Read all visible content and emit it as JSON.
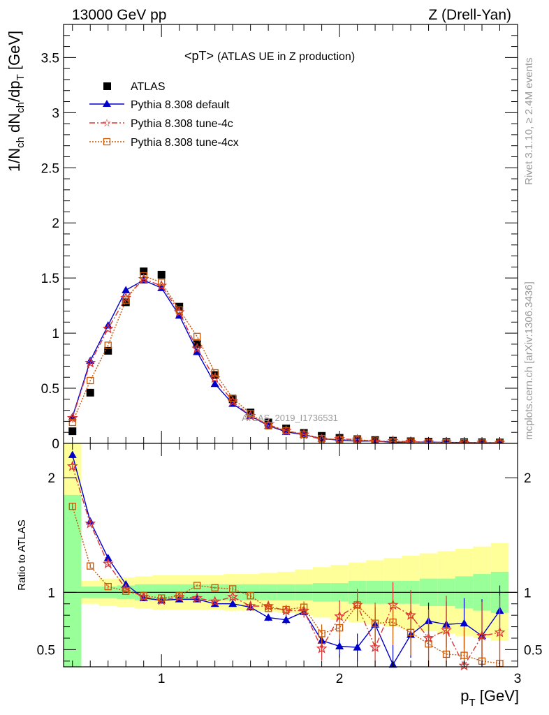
{
  "header": {
    "left": "13000 GeV pp",
    "right": "Z (Drell-Yan)"
  },
  "side": {
    "rivet": "Rivet 3.1.10, ≥ 2.4M events",
    "mcplots": "mcplots.cern.ch [arXiv:1306.3436]"
  },
  "colors": {
    "atlas": "#000000",
    "default": "#0000cc",
    "tune4c": "#dd3333",
    "tune4cx": "#cc5500",
    "band_inner": "#99ff99",
    "band_outer": "#ffff99"
  },
  "chart_data": [
    {
      "type": "scatter",
      "panel": "main",
      "title": "<pT>",
      "subtitle": "(ATLAS UE in Z production)",
      "watermark": "ATLAS_2019_I1736531",
      "ylabel": "1/N_ch dN_ch/dp_T [GeV]",
      "ylabel_parts": {
        "a": "1/N",
        "b": "ch",
        "c": " dN",
        "d": "ch",
        "e": "/dp",
        "f": "T",
        "g": " [GeV]"
      },
      "xlabel": "p_T [GeV]",
      "xlabel_parts": {
        "a": "p",
        "b": "T",
        "c": " [GeV]"
      },
      "xlim": [
        0.45,
        3.0
      ],
      "ylim": [
        0,
        3.8
      ],
      "yticks": [
        "0",
        "0.5",
        "1",
        "1.5",
        "2",
        "2.5",
        "3",
        "3.5"
      ],
      "ytick_values": [
        0,
        0.5,
        1,
        1.5,
        2,
        2.5,
        3,
        3.5
      ],
      "legend_position": "top-left",
      "x": [
        0.5,
        0.6,
        0.7,
        0.8,
        0.9,
        1.0,
        1.1,
        1.2,
        1.3,
        1.4,
        1.5,
        1.6,
        1.7,
        1.8,
        1.9,
        2.0,
        2.1,
        2.2,
        2.3,
        2.4,
        2.5,
        2.6,
        2.7,
        2.8,
        2.9
      ],
      "series": [
        {
          "name": "ATLAS",
          "marker": "square",
          "values": [
            0.11,
            0.46,
            0.84,
            1.28,
            1.56,
            1.53,
            1.24,
            0.9,
            0.62,
            0.4,
            0.28,
            0.19,
            0.135,
            0.095,
            0.068,
            0.05,
            0.038,
            0.03,
            0.024,
            0.019,
            0.016,
            0.013,
            0.011,
            0.01,
            0.008
          ]
        },
        {
          "name": "Pythia 8.308 default",
          "marker": "triangle",
          "line": "solid",
          "values": [
            0.24,
            0.75,
            1.07,
            1.39,
            1.48,
            1.41,
            1.16,
            0.83,
            0.54,
            0.36,
            0.25,
            0.16,
            0.105,
            0.078,
            0.045,
            0.028,
            0.02,
            0.022,
            0.009,
            0.012,
            0.012,
            0.009,
            0.008,
            0.006,
            0.007
          ]
        },
        {
          "name": "Pythia 8.308 tune-4c",
          "marker": "star",
          "line": "dashdot",
          "values": [
            0.23,
            0.73,
            1.04,
            1.32,
            1.49,
            1.43,
            1.19,
            0.86,
            0.59,
            0.38,
            0.25,
            0.17,
            0.115,
            0.08,
            0.035,
            0.04,
            0.035,
            0.016,
            0.022,
            0.015,
            0.01,
            0.009,
            0.004,
            0.006,
            0.005
          ]
        },
        {
          "name": "Pythia 8.308 tune-4cx",
          "marker": "open-square",
          "line": "dotted",
          "values": [
            0.19,
            0.57,
            0.89,
            1.3,
            1.52,
            1.46,
            1.21,
            0.97,
            0.64,
            0.41,
            0.27,
            0.16,
            0.115,
            0.083,
            0.044,
            0.035,
            0.034,
            0.022,
            0.018,
            0.012,
            0.009,
            0.006,
            0.005,
            0.004,
            0.003
          ]
        }
      ]
    },
    {
      "type": "scatter",
      "panel": "ratio",
      "ylabel": "Ratio to ATLAS",
      "xlim": [
        0.45,
        3.0
      ],
      "ylim": [
        0.35,
        2.3
      ],
      "xticks": [
        "1",
        "2",
        "3"
      ],
      "xtick_values": [
        1,
        2,
        3
      ],
      "yticks": [
        "0.5",
        "1",
        "2"
      ],
      "ytick_values": [
        0.5,
        1,
        2
      ],
      "x": [
        0.5,
        0.6,
        0.7,
        0.8,
        0.9,
        1.0,
        1.1,
        1.2,
        1.3,
        1.4,
        1.5,
        1.6,
        1.7,
        1.8,
        1.9,
        2.0,
        2.1,
        2.2,
        2.3,
        2.4,
        2.5,
        2.6,
        2.7,
        2.8,
        2.9
      ],
      "bands": {
        "bin_edges": [
          0.45,
          0.55,
          0.65,
          0.75,
          0.85,
          0.95,
          1.05,
          1.15,
          1.25,
          1.35,
          1.45,
          1.55,
          1.65,
          1.75,
          1.85,
          1.95,
          2.05,
          2.15,
          2.25,
          2.35,
          2.45,
          2.55,
          2.65,
          2.75,
          2.85,
          2.95
        ],
        "inner_up": [
          1.85,
          1.05,
          1.05,
          1.06,
          1.07,
          1.07,
          1.07,
          1.07,
          1.07,
          1.07,
          1.07,
          1.07,
          1.07,
          1.07,
          1.08,
          1.08,
          1.1,
          1.1,
          1.1,
          1.1,
          1.12,
          1.12,
          1.14,
          1.16,
          1.18
        ],
        "inner_lo": [
          0.35,
          0.95,
          0.95,
          0.94,
          0.93,
          0.93,
          0.93,
          0.93,
          0.93,
          0.93,
          0.93,
          0.93,
          0.93,
          0.93,
          0.92,
          0.92,
          0.9,
          0.9,
          0.9,
          0.9,
          0.88,
          0.88,
          0.86,
          0.84,
          0.82
        ],
        "outer_up": [
          2.3,
          1.1,
          1.12,
          1.13,
          1.14,
          1.15,
          1.15,
          1.15,
          1.15,
          1.16,
          1.16,
          1.17,
          1.18,
          1.2,
          1.22,
          1.24,
          1.26,
          1.28,
          1.3,
          1.32,
          1.34,
          1.36,
          1.38,
          1.4,
          1.43
        ],
        "outer_lo": [
          0.35,
          0.9,
          0.88,
          0.87,
          0.86,
          0.85,
          0.85,
          0.85,
          0.85,
          0.84,
          0.84,
          0.83,
          0.82,
          0.8,
          0.78,
          0.76,
          0.74,
          0.72,
          0.7,
          0.68,
          0.66,
          0.64,
          0.62,
          0.6,
          0.58
        ]
      },
      "series": [
        {
          "name": "Pythia 8.308 default",
          "marker": "triangle",
          "values": [
            2.2,
            1.62,
            1.3,
            1.07,
            0.95,
            0.93,
            0.94,
            0.94,
            0.9,
            0.9,
            0.87,
            0.78,
            0.76,
            0.83,
            0.58,
            0.53,
            0.52,
            0.72,
            0.37,
            0.63,
            0.75,
            0.72,
            0.73,
            0.62,
            0.84
          ],
          "err": [
            0.03,
            0.02,
            0.02,
            0.01,
            0.01,
            0.01,
            0.01,
            0.01,
            0.01,
            0.01,
            0.03,
            0.03,
            0.04,
            0.05,
            0.08,
            0.1,
            0.12,
            0.15,
            0.17,
            0.2,
            0.16,
            0.2,
            0.22,
            0.32,
            0.22
          ]
        },
        {
          "name": "Pythia 8.308 tune-4c",
          "marker": "star",
          "values": [
            2.1,
            1.6,
            1.25,
            1.03,
            0.96,
            0.93,
            0.96,
            0.95,
            0.92,
            0.96,
            0.88,
            0.88,
            0.84,
            0.84,
            0.51,
            0.79,
            0.89,
            0.52,
            0.89,
            0.8,
            0.6,
            0.67,
            0.36,
            0.62,
            0.65
          ],
          "err": [
            0.03,
            0.02,
            0.02,
            0.01,
            0.01,
            0.01,
            0.01,
            0.01,
            0.01,
            0.01,
            0.03,
            0.03,
            0.04,
            0.06,
            0.1,
            0.14,
            0.1,
            0.2,
            0.2,
            0.22,
            0.25,
            0.3,
            0.3,
            0.3,
            0.32
          ]
        },
        {
          "name": "Pythia 8.308 tune-4cx",
          "marker": "open-square",
          "values": [
            1.75,
            1.23,
            1.05,
            1.01,
            0.97,
            0.95,
            0.97,
            1.06,
            1.04,
            1.03,
            0.97,
            0.86,
            0.85,
            0.87,
            0.64,
            0.69,
            0.89,
            0.73,
            0.74,
            0.65,
            0.55,
            0.46,
            0.45,
            0.4,
            0.38
          ],
          "err": [
            0.03,
            0.02,
            0.02,
            0.01,
            0.01,
            0.01,
            0.01,
            0.01,
            0.01,
            0.02,
            0.03,
            0.03,
            0.04,
            0.05,
            0.08,
            0.1,
            0.14,
            0.18,
            0.2,
            0.2,
            0.2,
            0.25,
            0.25,
            0.25,
            0.3
          ]
        }
      ]
    }
  ]
}
